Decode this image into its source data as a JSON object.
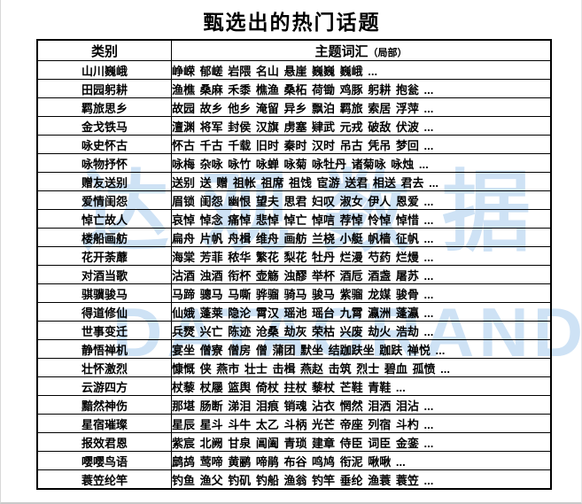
{
  "title": "甄选出的热门话题",
  "watermark": {
    "chinese": "达观数据",
    "english": "DATAGRAND",
    "color": "#9ec6ec"
  },
  "table": {
    "header": {
      "category": "类别",
      "topics": "主题词汇",
      "topics_note": "（局部）"
    },
    "rows": [
      {
        "category": "山川巍峨",
        "topics": "峥嵘 郁嵯 岩隈 名山 悬崖 巍巍 巍峨 ..."
      },
      {
        "category": "田园躬耕",
        "topics": "渔樵 桑麻 禾黍 樵渔 桑柘 荷锄 鸡豚 躬耕 抱瓮 ..."
      },
      {
        "category": "羁旅思乡",
        "topics": "故园 故乡 他乡 淹留 异乡 飘泊 羁旅 索居 浮萍 ..."
      },
      {
        "category": "金戈铁马",
        "topics": "澶渊 将军 封侯 汉旗 虏塞 肄武 元戎 破敌 伏波 ..."
      },
      {
        "category": "咏史怀古",
        "topics": "怀古 千古 千载 旧时 秦时 汉时 吊古 凭吊 梦回 ..."
      },
      {
        "category": "咏物抒怀",
        "topics": "咏梅 杂咏 咏竹 咏蝉 咏菊 咏牡丹 诸菊咏 咏烛 ..."
      },
      {
        "category": "赠友送别",
        "topics": "送别 送 赠 祖帐 祖席 祖饯 宦游 送君 相送 君去 ..."
      },
      {
        "category": "爱情闺怨",
        "topics": "眉锁 闺怨 幽恨 望夫 思君 妇叹 淑女 伊人 恩爱 ..."
      },
      {
        "category": "悼亡故人",
        "topics": "哀悼 悼念 痛悼 悲悼 悼亡 悼唁 荐悼 怜悼 悼惜 ..."
      },
      {
        "category": "楼船画舫",
        "topics": "扁舟 片帆 舟楫 维舟 画舫 兰桡 小艇 帆樯 征帆 ..."
      },
      {
        "category": "花开荼蘼",
        "topics": "海棠 芳菲 秾华 繁花 梨花 牡丹 烂漫 芍药 烂熳 ..."
      },
      {
        "category": "对酒当歌",
        "topics": "沽酒 浊酒 衔杯 壶觞 浊醪 举杯 酒卮 酒盏 屠苏 ..."
      },
      {
        "category": "骐骥骏马",
        "topics": "马蹄 骢马 马嘶 骅骝 骑马 骏马 紫骝 龙媒 骏骨 ..."
      },
      {
        "category": "得道修仙",
        "topics": "仙娥 蓬莱 隐沦 霄汉 瑶池 瑶台 九霄 瀛洲 蓬瀛 ..."
      },
      {
        "category": "世事变迁",
        "topics": "兵燹 兴亡 陈迹 沧桑 劫灰 荣枯 兴废 劫火 浩劫 ..."
      },
      {
        "category": "静悟禅机",
        "topics": "宴坐 僧寮 僧房 僧 蒲团 默坐 结跏趺坐 跏趺 禅悦 ..."
      },
      {
        "category": "壮怀激烈",
        "topics": "慷慨 侠 燕市 壮士 击楫 燕赵 击筑 烈士 碧血 孤愤 ..."
      },
      {
        "category": "云游四方",
        "topics": "杖藜 杖屦 篮舆 倚杖 拄杖 藜杖 芒鞋 青鞋 ..."
      },
      {
        "category": "黯然神伤",
        "topics": "那堪 肠断 涕泪 泪痕 销魂 沾衣 惘然 泪洒 泪沾 ..."
      },
      {
        "category": "星宿璀璨",
        "topics": "星辰 星斗 斗牛 太乙 斗柄 光芒 帝座 列宿 斗杓 ..."
      },
      {
        "category": "报效君恩",
        "topics": "紫宸 北阙 甘泉 阊阖 青琐 建章 侍臣 词臣 金銮 ..."
      },
      {
        "category": "嘤嘤鸟语",
        "topics": "鹧鸪 莺啼 黄鹂 啼鹃 布谷 鸣鸠 衔泥 啾啾 ..."
      },
      {
        "category": "蓑笠纶竿",
        "topics": "钓鱼 渔父 钓矶 钓船 渔翁 钓竿 垂纶 渔蓑 蓑笠 ..."
      }
    ]
  }
}
